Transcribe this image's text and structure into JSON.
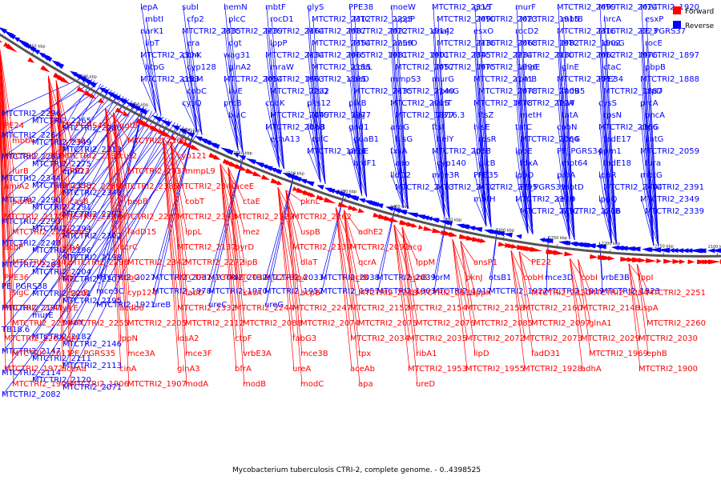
{
  "caption": "Mycobacterium tuberculosis CTRI-2, complete genome. - 0..4398525",
  "legend": [
    {
      "label": "Forward",
      "color": "#ff0000"
    },
    {
      "label": "Reverse",
      "color": "#0000ff"
    }
  ],
  "colors": {
    "forward": "#ff0000",
    "reverse": "#0000ff",
    "backbone": "#555555"
  },
  "ticks": [
    "2750 kbp",
    "2700 kbp",
    "2650 kbp",
    "2600 kbp",
    "2550 kbp",
    "2500 kbp",
    "2450 kbp",
    "2400 kbp",
    "2350 kbp",
    "2300 kbp",
    "2250 kbp",
    "2200 kbp",
    "2150 kbp",
    "2100 kbp"
  ],
  "reverse_labels": [
    "lepA",
    "subI",
    "hemN",
    "mbtF",
    "glyS",
    "PPE38",
    "moeW",
    "MTCTRI2_2315",
    "gcvT",
    "murF",
    "MTCTRI2_2099",
    "MTCTRI2_2024",
    "MTCTRI2_1920",
    "mbtI",
    "cfp2",
    "plcC",
    "rocD1",
    "MTCTRI2_2312",
    "MTCTRI2_2225",
    "uppP",
    "MTCTRI2_2090",
    "MTCTRI2_2023",
    "MTCTRI2_1915",
    "mbtB",
    "hrcA",
    "esxP",
    "narK1",
    "MTCTRI2_2335",
    "MTCTRI2_2239",
    "MTCTRI2_2164",
    "MTCTRI2_2087",
    "MTCTRI2_2022",
    "MTCTRI2_1914",
    "dnaJ2",
    "esxO",
    "rocD2",
    "MTCTRI2_2316",
    "MTCTRI2_2223",
    "PE_PGRS37",
    "lipT",
    "era",
    "dgt",
    "lppP",
    "MTCTRI2_2354",
    "MTCTRI2_2259",
    "murD",
    "MTCTRI2_2136",
    "MTCTRI2_2068",
    "MTCTRI2_1982",
    "MTCTRI2_1902",
    "dnaG",
    "rocE",
    "MTCTRI2_2304",
    "cbhK",
    "wag31",
    "MTCTRI2_2134",
    "MTCTRI2_2065",
    "MTCTRI2_1981",
    "MTCTRI2_1901",
    "MTCTRI2_2345",
    "MTCTRI2_2234",
    "MTCTRI2_2130",
    "MTCTRI2_2062",
    "MTCTRI2_1976",
    "MTCTRI2_1897",
    "htpG",
    "cyp128",
    "glnA2",
    "mraW",
    "MTCTRI2_2155",
    "cobL",
    "MTCTRI2_2057",
    "MTCTRI2_1975",
    "MTCTRI2_1896",
    "ahpE",
    "glnE",
    "ctaC",
    "pbpB",
    "MTCTRI2_2153",
    "cobM",
    "MTCTRI2_2054",
    "MTCTRI2_1963",
    "MTCTRI2_1895",
    "cobD",
    "mmpS3",
    "murG",
    "MTCTRI2_2141",
    "rpmB",
    "MTCTRI2_2012",
    "PPE34",
    "MTCTRI2_1888",
    "cobC",
    "ilvE",
    "MTCTRI2_2232",
    "ftsQ",
    "MTCTRI2_2135",
    "MTCTRI2_2140",
    "rpmG",
    "MTCTRI2_2078",
    "MTCTRI2_2009",
    "fadB5",
    "MTCTRI2_1887",
    "trpD",
    "cysQ",
    "prcB",
    "cobK",
    "pks12",
    "pfkB",
    "MTCTRI2_2015",
    "nanT",
    "MTCTRI2_1878",
    "MTCTRI2_2224",
    "ftsW",
    "cysS",
    "prcA",
    "blaC",
    "MTCTRI2_2049",
    "MTCTRI2_1977",
    "lipJ",
    "MTCTRI2_1877",
    "TB16.3",
    "ftsZ",
    "metH",
    "tatA",
    "rpsN",
    "pncA",
    "MTCTRI2_2018",
    "fbpB",
    "gnd1",
    "aroG",
    "ftsI",
    "hisE",
    "tatC",
    "cobN",
    "MTCTRI2_2066",
    "ctpG",
    "echA13",
    "rpfC",
    "guaB1",
    "hisG",
    "helY",
    "rpsR",
    "MTCTRI2_2064",
    "lpqG",
    "fadE17",
    "katG",
    "MTCTRI2_1874",
    "pepE",
    "fxsA",
    "MTCTRI2_2063",
    "lppF",
    "lppE",
    "PE_PGRS34",
    "ppm1",
    "MTCTRI2_2059",
    "hrdF1",
    "aao",
    "cyp140",
    "glcB",
    "fdxA",
    "mpt64",
    "fadE18",
    "fura",
    "lldD2",
    "mce3R",
    "PPE35",
    "lppD",
    "proA",
    "lppR",
    "mbtG",
    "MTCTRI2_2413",
    "MTCTRI2_2412",
    "MTCTRI2_2395",
    "PE_PGRS39",
    "mbtD",
    "MTCTRI2_2404",
    "MTCTRI2_2391",
    "mbtH",
    "MTCTRI2_2379",
    "recO",
    "lppQ",
    "MTCTRI2_2349",
    "MTCTRI2_2297",
    "MTCTRI2_2276",
    "plcB",
    "MTCTRI2_2339",
    "MTCTRI2_2296",
    "MTCTRI2_2265",
    "MTCTRI2_2286",
    "MTCTRI2_2264",
    "MTCTRI2_2349",
    "MTCTRI2_2313",
    "MTCTRI2_2299",
    "MTCTRI2_2275",
    "ephD",
    "MTCTRI2_2344",
    "MTCTRI2_2338",
    "MTCTRI2_2343",
    "MTCTRI2_2290",
    "MTCTRI2_2291",
    "MTCTRI2_2292",
    "MTCTRI2_2293",
    "MTCTRI2_2294",
    "MTCTRI2_2302",
    "MTCTRI2_2240",
    "MTCTRI2_2196",
    "MTCTRI2_2198",
    "MTCTRI2_2203",
    "MTCTRI2_2204",
    "MTCTRI2_2207",
    "PE_PGRS38",
    "MTCTRI2_2201",
    "MTCTRI2_2195",
    "MTCTRI2_2197",
    "murE",
    "mraY",
    "TB18.6",
    "MTCTRI2_2182",
    "MTCTRI2_2146",
    "MTCTRI2_2147",
    "MTCTRI2_2111",
    "MTCTRI2_2113",
    "MTCTRI2_2114",
    "MTCTRI2_2120",
    "MTCTRI2_2071",
    "MTCTRI2_2082",
    "MTCTRI2_2027",
    "MTCTRI2_2037",
    "MTCTRI2_2032",
    "MTCTRI2_2033",
    "MTCTRI2_2038",
    "MTCTRI2_2039",
    "lprM",
    "otsB1",
    "mce3D",
    "vrbE3B",
    "mce3C",
    "MTCTRI2_1978",
    "MTCTRI2_1970",
    "MTCTRI2_1952",
    "MTCTRI2_1957",
    "MTCTRI2_1903",
    "MTCTRI2_1917",
    "MTCTRI2_1922",
    "MTCTRI2_1919",
    "MTCTRI2_1923",
    "MTCTRI2_1921",
    "ureB",
    "ureC",
    "ureG"
  ],
  "forward_labels": [
    "PE24",
    "PE_PGRS41",
    "ggtB",
    "mbtA",
    "nirA",
    "MTCTRI2_2368",
    "MTCTRI2_2351",
    "MTCTRI2_2330",
    "cut2",
    "cyp121",
    "furB",
    "PE23",
    "MTCTRI2_2337",
    "mmpL9",
    "amiA2",
    "MTCTRI2_2289",
    "MTCTRI2_2385",
    "MTCTRI2_2340",
    "aceE",
    "panB",
    "casB",
    "pepB",
    "cobT",
    "ctaE",
    "pknL",
    "MTCTRI2_2372",
    "MTCTRI2_2331",
    "MTCTRI2_2287",
    "MTCTRI2_2373",
    "MTCTRI2_2329",
    "MTCTRI2_2262",
    "MTCTRI2_2226",
    "cobS",
    "fadD15",
    "lppL",
    "mez",
    "uspB",
    "adhE2",
    "acpP",
    "ptpA",
    "qcrC",
    "MTCTRI2_2137",
    "pyrD",
    "MTCTRI2_2139",
    "MTCTRI2_2092",
    "acg",
    "MTCTRI2_2341",
    "MTCTRI2_2298",
    "MTCTRI2_2342",
    "MTCTRI2_2272",
    "lipB",
    "dlaT",
    "qcrA",
    "lppM",
    "ansP1",
    "PE22",
    "PPE36",
    "lppJ",
    "cobG",
    "MTCTRI2_2300",
    "MTCTRI2_2278",
    "lipA",
    "qcrB",
    "asnB",
    "pknJ",
    "cobH",
    "cobI",
    "lppI",
    "sigC",
    "sseB",
    "cyp124",
    "fabD",
    "kasA",
    "acpB",
    "MTCTRI2_2238",
    "MTCTRI2_2138",
    "lppK",
    "MTCTRI2_2320",
    "MTCTRI2_2284",
    "MTCTRI2_2251",
    "MTCTRI2_2241",
    "yjcE",
    "acdb6",
    "MTCTRI2_2332",
    "MTCTRI2_2244",
    "MTCTRI2_2247",
    "MTCTRI2_2152",
    "MTCTRI2_2154",
    "MTCTRI2_2158",
    "MTCTRI2_2160",
    "MTCTRI2_2148",
    "uspA",
    "MTCTRI2_2254",
    "MTCTRI2_2255",
    "MTCTRI2_2205",
    "MTCTRI2_2112",
    "MTCTRI2_2088",
    "MTCTRI2_2074",
    "MTCTRI2_2075",
    "MTCTRI2_2076",
    "MTCTRI2_2085",
    "MTCTRI2_2097",
    "glnA1",
    "MTCTRI2_2260",
    "MTCTRI2_2263",
    "lipM",
    "lppN",
    "idsA2",
    "ctpF",
    "fabG3",
    "MTCTRI2_2034",
    "MTCTRI2_2035",
    "MTCTRI2_2072",
    "MTCTRI2_2073",
    "MTCTRI2_2029",
    "MTCTRI2_2030",
    "MTCTRI2_2011",
    "PE_PGRS35",
    "mce3A",
    "mce3F",
    "vrbE3A",
    "mce3B",
    "tpx",
    "ribA1",
    "lipD",
    "fadD31",
    "MTCTRI2_1969",
    "ephB",
    "MTCTRI2_1972",
    "aceAa",
    "cinA",
    "glnA3",
    "bfrA",
    "ureA",
    "aceAb",
    "MTCTRI2_1953",
    "MTCTRI2_1955",
    "MTCTRI2_1928",
    "adhA",
    "MTCTRI2_1900",
    "MTCTRI2_1905",
    "MTCTRI2_1906",
    "MTCTRI2_1907",
    "modA",
    "modB",
    "modC",
    "apa",
    "ureD"
  ]
}
